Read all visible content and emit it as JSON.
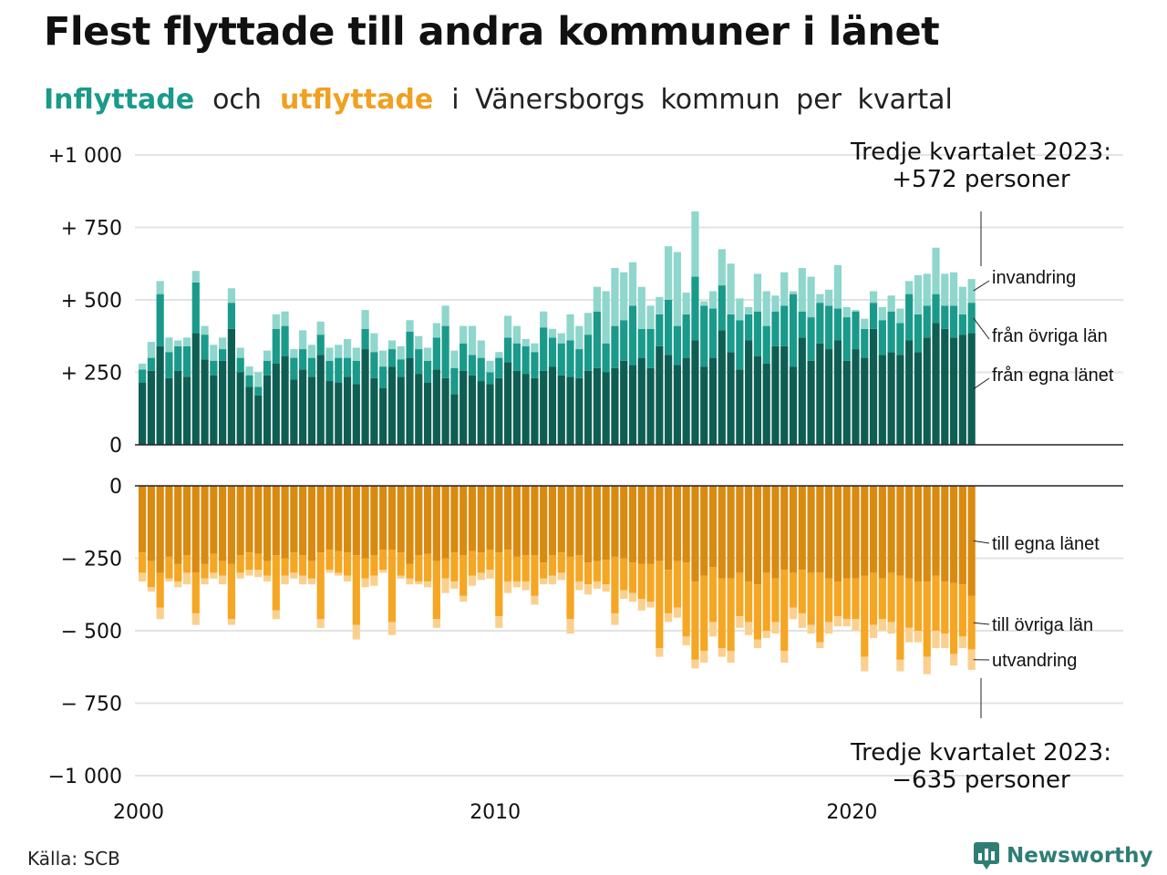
{
  "title": "Flest flyttade till andra kommuner i länet",
  "subtitle": {
    "inflyttade": "Inflyttade",
    "och": "och",
    "utflyttade": "utflyttade",
    "rest": "i Vänersborgs kommun per kvartal"
  },
  "source": "Källa: SCB",
  "brand": "Newsworthy",
  "colors": {
    "in_egna": "#0f5e53",
    "in_ovriga": "#1a9a8a",
    "in_invandring": "#8fd6cc",
    "ut_egna": "#d98a10",
    "ut_ovriga": "#f5a623",
    "ut_utvandring": "#fad08e",
    "text": "#111111",
    "grid": "#e3e3e3"
  },
  "chart_data": {
    "type": "bar",
    "stacked": true,
    "x_ticks": [
      "2000",
      "2010",
      "2020"
    ],
    "first_quarter": "2000 Q1",
    "last_quarter": "2023 Q3",
    "top_panel": {
      "ytick_labels": [
        "+1 000",
        "+  750",
        "+  500",
        "+  250",
        "0"
      ],
      "ytick_values": [
        1000,
        750,
        500,
        250,
        0
      ],
      "ylim": [
        0,
        1000
      ],
      "series_labels": [
        "invandring",
        "från övriga län",
        "från egna länet"
      ],
      "annotation": [
        "Tredje kvartalet 2023:",
        "+572 personer"
      ],
      "series": [
        {
          "name": "från egna länet",
          "values": [
            215,
            255,
            340,
            230,
            255,
            235,
            385,
            295,
            240,
            290,
            400,
            250,
            200,
            170,
            240,
            280,
            305,
            225,
            260,
            235,
            310,
            220,
            215,
            235,
            210,
            330,
            230,
            195,
            270,
            235,
            300,
            245,
            215,
            260,
            230,
            175,
            255,
            240,
            220,
            210,
            230,
            285,
            255,
            245,
            230,
            255,
            270,
            240,
            235,
            230,
            255,
            265,
            250,
            265,
            290,
            275,
            300,
            265,
            340,
            310,
            275,
            300,
            360,
            270,
            300,
            395,
            320,
            260,
            360,
            305,
            280,
            340,
            340,
            270,
            370,
            290,
            350,
            330,
            360,
            290,
            330,
            300,
            400,
            310,
            320,
            310,
            360,
            320,
            370,
            420,
            400,
            370,
            380,
            385
          ]
        },
        {
          "name": "från övriga län",
          "values": [
            260,
            300,
            520,
            320,
            340,
            340,
            560,
            380,
            290,
            330,
            490,
            300,
            240,
            200,
            290,
            400,
            410,
            300,
            330,
            300,
            380,
            290,
            300,
            300,
            290,
            400,
            320,
            270,
            330,
            295,
            390,
            330,
            290,
            370,
            410,
            265,
            350,
            310,
            300,
            250,
            300,
            370,
            350,
            340,
            320,
            405,
            370,
            350,
            360,
            330,
            380,
            460,
            350,
            410,
            430,
            480,
            400,
            400,
            450,
            500,
            410,
            450,
            580,
            480,
            470,
            550,
            450,
            430,
            450,
            460,
            410,
            460,
            480,
            520,
            460,
            440,
            490,
            480,
            470,
            440,
            460,
            400,
            490,
            430,
            460,
            420,
            520,
            450,
            480,
            520,
            480,
            480,
            450,
            490
          ]
        },
        {
          "name": "invandring",
          "values": [
            280,
            355,
            565,
            370,
            360,
            370,
            600,
            410,
            345,
            370,
            540,
            335,
            270,
            250,
            325,
            450,
            460,
            330,
            395,
            345,
            425,
            335,
            345,
            365,
            335,
            465,
            385,
            325,
            360,
            340,
            430,
            375,
            335,
            420,
            480,
            325,
            410,
            410,
            360,
            290,
            320,
            445,
            410,
            365,
            350,
            460,
            400,
            385,
            450,
            410,
            455,
            545,
            530,
            610,
            595,
            630,
            545,
            480,
            510,
            685,
            665,
            525,
            805,
            495,
            530,
            675,
            625,
            505,
            475,
            590,
            530,
            515,
            595,
            530,
            610,
            580,
            520,
            535,
            620,
            475,
            465,
            435,
            530,
            475,
            515,
            470,
            565,
            585,
            590,
            680,
            590,
            595,
            545,
            572
          ]
        }
      ]
    },
    "bottom_panel": {
      "ytick_labels": [
        "0",
        "−  250",
        "−  500",
        "−  750",
        "−1 000"
      ],
      "ytick_values": [
        0,
        -250,
        -500,
        -750,
        -1000
      ],
      "ylim": [
        -1000,
        0
      ],
      "series_labels": [
        "till egna länet",
        "till övriga län",
        "utvandring"
      ],
      "annotation": [
        "Tredje kvartalet 2023:",
        "−635 personer"
      ],
      "series": [
        {
          "name": "till egna länet",
          "values": [
            -230,
            -260,
            -300,
            -245,
            -270,
            -240,
            -300,
            -270,
            -235,
            -260,
            -270,
            -240,
            -230,
            -235,
            -260,
            -240,
            -250,
            -230,
            -240,
            -260,
            -230,
            -220,
            -225,
            -230,
            -240,
            -250,
            -240,
            -220,
            -220,
            -230,
            -270,
            -240,
            -235,
            -260,
            -250,
            -230,
            -240,
            -225,
            -230,
            -220,
            -230,
            -220,
            -245,
            -240,
            -240,
            -265,
            -240,
            -230,
            -245,
            -240,
            -265,
            -260,
            -255,
            -245,
            -250,
            -265,
            -270,
            -270,
            -260,
            -290,
            -260,
            -265,
            -330,
            -310,
            -280,
            -320,
            -320,
            -300,
            -330,
            -340,
            -300,
            -320,
            -290,
            -300,
            -290,
            -300,
            -300,
            -320,
            -330,
            -320,
            -320,
            -310,
            -300,
            -320,
            -300,
            -310,
            -320,
            -330,
            -330,
            -310,
            -330,
            -335,
            -340,
            -380
          ]
        },
        {
          "name": "till övriga län",
          "values": [
            -300,
            -350,
            -420,
            -320,
            -330,
            -300,
            -440,
            -320,
            -300,
            -310,
            -460,
            -300,
            -290,
            -290,
            -310,
            -430,
            -310,
            -300,
            -310,
            -320,
            -460,
            -290,
            -300,
            -310,
            -480,
            -320,
            -310,
            -290,
            -470,
            -310,
            -320,
            -330,
            -330,
            -460,
            -320,
            -330,
            -380,
            -310,
            -300,
            -290,
            -450,
            -330,
            -330,
            -330,
            -380,
            -320,
            -310,
            -300,
            -460,
            -330,
            -340,
            -330,
            -340,
            -440,
            -360,
            -370,
            -390,
            -400,
            -560,
            -440,
            -420,
            -520,
            -600,
            -570,
            -470,
            -560,
            -570,
            -450,
            -470,
            -530,
            -500,
            -470,
            -570,
            -420,
            -440,
            -480,
            -540,
            -470,
            -450,
            -460,
            -460,
            -590,
            -480,
            -460,
            -470,
            -600,
            -490,
            -500,
            -590,
            -500,
            -510,
            -580,
            -520,
            -565
          ]
        },
        {
          "name": "utvandring",
          "values": [
            -330,
            -365,
            -460,
            -330,
            -350,
            -340,
            -480,
            -340,
            -320,
            -340,
            -480,
            -320,
            -310,
            -315,
            -330,
            -460,
            -340,
            -320,
            -340,
            -340,
            -490,
            -300,
            -310,
            -330,
            -530,
            -350,
            -345,
            -300,
            -515,
            -320,
            -340,
            -340,
            -350,
            -490,
            -370,
            -355,
            -400,
            -345,
            -325,
            -320,
            -490,
            -370,
            -350,
            -360,
            -410,
            -340,
            -340,
            -325,
            -510,
            -360,
            -375,
            -355,
            -365,
            -480,
            -390,
            -400,
            -430,
            -420,
            -590,
            -470,
            -455,
            -550,
            -630,
            -610,
            -520,
            -590,
            -610,
            -490,
            -515,
            -560,
            -525,
            -510,
            -610,
            -460,
            -490,
            -510,
            -560,
            -510,
            -485,
            -485,
            -500,
            -640,
            -525,
            -500,
            -510,
            -640,
            -540,
            -540,
            -650,
            -560,
            -560,
            -620,
            -560,
            -635
          ]
        }
      ]
    }
  }
}
